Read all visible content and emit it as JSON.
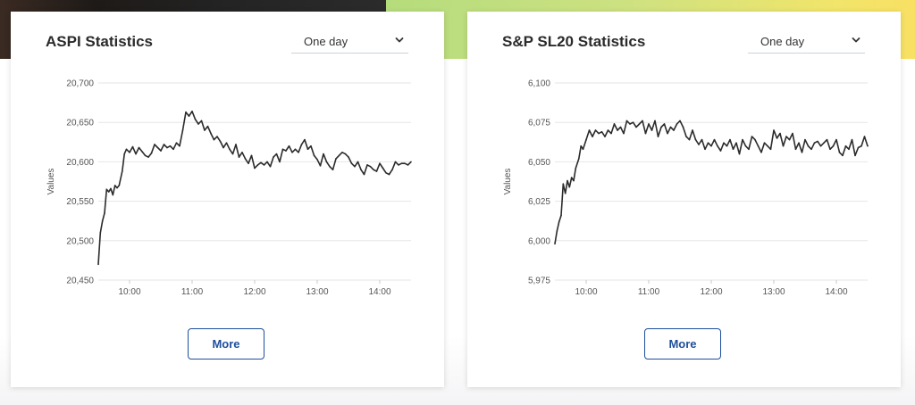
{
  "colors": {
    "line": "#2b2b2b",
    "grid": "#e6e6e6",
    "button": "#1d4f9c",
    "title": "#2b2b2b"
  },
  "icons": {
    "select_chevron": "chevron-down-icon"
  },
  "cards": [
    {
      "title": "ASPI Statistics",
      "period": "One day",
      "more_label": "More"
    },
    {
      "title": "S&P SL20 Statistics",
      "period": "One day",
      "more_label": "More"
    }
  ],
  "chart_data": [
    {
      "type": "line",
      "title": "ASPI Statistics",
      "xlabel": "",
      "ylabel": "Values",
      "ylim": [
        20450,
        20700
      ],
      "yticks": [
        20450,
        20500,
        20550,
        20600,
        20650,
        20700
      ],
      "ytick_labels": [
        "20,450",
        "20,500",
        "20,550",
        "20,600",
        "20,650",
        "20,700"
      ],
      "xlim": [
        "09:30",
        "14:30"
      ],
      "xticks": [
        "10:00",
        "11:00",
        "12:00",
        "13:00",
        "14:00"
      ],
      "grid": true,
      "series": [
        {
          "x": [
            "09:30",
            "09:32",
            "09:34",
            "09:36",
            "09:38",
            "09:40",
            "09:42",
            "09:44",
            "09:46",
            "09:48",
            "09:50",
            "09:53",
            "09:55",
            "09:57",
            "10:00",
            "10:03",
            "10:06",
            "10:09",
            "10:12",
            "10:15",
            "10:18",
            "10:21",
            "10:24",
            "10:27",
            "10:30",
            "10:33",
            "10:36",
            "10:39",
            "10:42",
            "10:45",
            "10:48",
            "10:51",
            "10:54",
            "10:57",
            "11:00",
            "11:03",
            "11:06",
            "11:09",
            "11:12",
            "11:15",
            "11:18",
            "11:21",
            "11:24",
            "11:27",
            "11:30",
            "11:33",
            "11:36",
            "11:39",
            "11:42",
            "11:45",
            "11:48",
            "11:51",
            "11:54",
            "11:57",
            "12:00",
            "12:03",
            "12:06",
            "12:09",
            "12:12",
            "12:15",
            "12:18",
            "12:21",
            "12:24",
            "12:27",
            "12:30",
            "12:33",
            "12:36",
            "12:39",
            "12:42",
            "12:45",
            "12:48",
            "12:51",
            "12:54",
            "12:57",
            "13:00",
            "13:03",
            "13:06",
            "13:09",
            "13:12",
            "13:15",
            "13:18",
            "13:21",
            "13:24",
            "13:27",
            "13:30",
            "13:33",
            "13:36",
            "13:39",
            "13:42",
            "13:45",
            "13:48",
            "13:51",
            "13:54",
            "13:57",
            "14:00",
            "14:03",
            "14:06",
            "14:09",
            "14:12",
            "14:15",
            "14:18",
            "14:21",
            "14:24",
            "14:27",
            "14:30"
          ],
          "values": [
            20470,
            20510,
            20525,
            20535,
            20565,
            20562,
            20566,
            20558,
            20570,
            20567,
            20570,
            20588,
            20610,
            20616,
            20612,
            20619,
            20610,
            20618,
            20613,
            20608,
            20606,
            20611,
            20622,
            20618,
            20614,
            20622,
            20618,
            20620,
            20616,
            20624,
            20620,
            20640,
            20663,
            20658,
            20664,
            20654,
            20648,
            20652,
            20640,
            20645,
            20636,
            20628,
            20632,
            20626,
            20618,
            20624,
            20616,
            20610,
            20622,
            20606,
            20612,
            20604,
            20598,
            20608,
            20592,
            20596,
            20599,
            20596,
            20600,
            20594,
            20606,
            20610,
            20600,
            20616,
            20614,
            20620,
            20612,
            20616,
            20612,
            20622,
            20628,
            20616,
            20620,
            20608,
            20603,
            20595,
            20610,
            20600,
            20594,
            20590,
            20604,
            20608,
            20612,
            20610,
            20606,
            20598,
            20594,
            20600,
            20590,
            20584,
            20596,
            20594,
            20590,
            20588,
            20598,
            20592,
            20586,
            20584,
            20590,
            20600,
            20596,
            20598,
            20598,
            20596,
            20600
          ]
        }
      ]
    },
    {
      "type": "line",
      "title": "S&P SL20 Statistics",
      "xlabel": "",
      "ylabel": "Values",
      "ylim": [
        5975,
        6100
      ],
      "yticks": [
        5975,
        6000,
        6025,
        6050,
        6075,
        6100
      ],
      "ytick_labels": [
        "5,975",
        "6,000",
        "6,025",
        "6,050",
        "6,075",
        "6,100"
      ],
      "xlim": [
        "09:30",
        "14:30"
      ],
      "xticks": [
        "10:00",
        "11:00",
        "12:00",
        "13:00",
        "14:00"
      ],
      "grid": true,
      "series": [
        {
          "x": [
            "09:30",
            "09:32",
            "09:34",
            "09:36",
            "09:38",
            "09:40",
            "09:42",
            "09:44",
            "09:46",
            "09:48",
            "09:50",
            "09:53",
            "09:55",
            "09:57",
            "10:00",
            "10:03",
            "10:06",
            "10:09",
            "10:12",
            "10:15",
            "10:18",
            "10:21",
            "10:24",
            "10:27",
            "10:30",
            "10:33",
            "10:36",
            "10:39",
            "10:42",
            "10:45",
            "10:48",
            "10:51",
            "10:54",
            "10:57",
            "11:00",
            "11:03",
            "11:06",
            "11:09",
            "11:12",
            "11:15",
            "11:18",
            "11:21",
            "11:24",
            "11:27",
            "11:30",
            "11:33",
            "11:36",
            "11:39",
            "11:42",
            "11:45",
            "11:48",
            "11:51",
            "11:54",
            "11:57",
            "12:00",
            "12:03",
            "12:06",
            "12:09",
            "12:12",
            "12:15",
            "12:18",
            "12:21",
            "12:24",
            "12:27",
            "12:30",
            "12:33",
            "12:36",
            "12:39",
            "12:42",
            "12:45",
            "12:48",
            "12:51",
            "12:54",
            "12:57",
            "13:00",
            "13:03",
            "13:06",
            "13:09",
            "13:12",
            "13:15",
            "13:18",
            "13:21",
            "13:24",
            "13:27",
            "13:30",
            "13:33",
            "13:36",
            "13:39",
            "13:42",
            "13:45",
            "13:48",
            "13:51",
            "13:54",
            "13:57",
            "14:00",
            "14:03",
            "14:06",
            "14:09",
            "14:12",
            "14:15",
            "14:18",
            "14:21",
            "14:24",
            "14:27",
            "14:30"
          ],
          "values": [
            5998,
            6006,
            6012,
            6016,
            6036,
            6030,
            6038,
            6034,
            6040,
            6038,
            6046,
            6052,
            6060,
            6058,
            6064,
            6070,
            6066,
            6070,
            6068,
            6069,
            6066,
            6070,
            6068,
            6074,
            6070,
            6072,
            6068,
            6076,
            6074,
            6075,
            6072,
            6074,
            6076,
            6068,
            6074,
            6070,
            6076,
            6066,
            6072,
            6074,
            6068,
            6072,
            6070,
            6074,
            6076,
            6072,
            6066,
            6064,
            6070,
            6064,
            6061,
            6064,
            6058,
            6062,
            6060,
            6064,
            6060,
            6057,
            6062,
            6060,
            6064,
            6058,
            6062,
            6055,
            6064,
            6060,
            6058,
            6066,
            6064,
            6060,
            6056,
            6062,
            6060,
            6058,
            6070,
            6065,
            6068,
            6060,
            6066,
            6064,
            6068,
            6058,
            6062,
            6056,
            6064,
            6060,
            6058,
            6062,
            6063,
            6060,
            6062,
            6064,
            6058,
            6060,
            6064,
            6056,
            6054,
            6060,
            6058,
            6064,
            6054,
            6059,
            6060,
            6066,
            6060
          ]
        }
      ]
    }
  ]
}
